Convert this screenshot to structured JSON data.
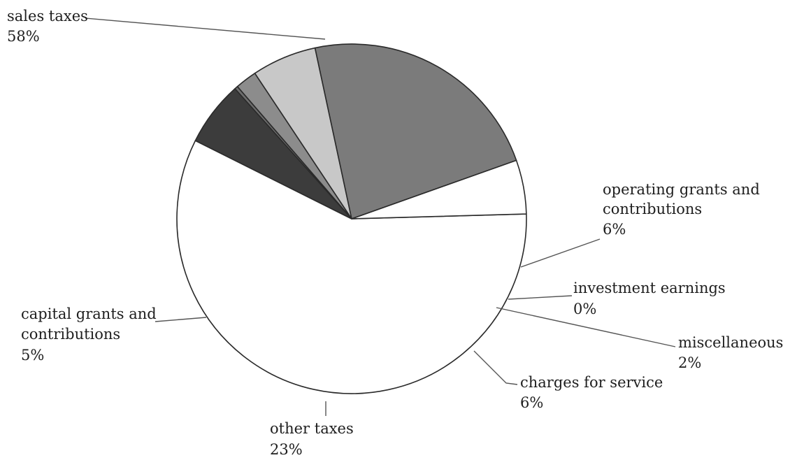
{
  "chart_data": {
    "type": "pie",
    "title": "",
    "slices": [
      {
        "label": "sales taxes",
        "pct_label": "58%",
        "value": 58,
        "color": "#ffffff"
      },
      {
        "label": "operating grants and contributions",
        "pct_label": "6%",
        "value": 6,
        "color": "#3c3c3c"
      },
      {
        "label": "investment earnings",
        "pct_label": "0%",
        "value": 0.3,
        "color": "#6d6d6d"
      },
      {
        "label": "miscellaneous",
        "pct_label": "2%",
        "value": 2,
        "color": "#8c8c8c"
      },
      {
        "label": "charges for service",
        "pct_label": "6%",
        "value": 6,
        "color": "#c8c8c8"
      },
      {
        "label": "other taxes",
        "pct_label": "23%",
        "value": 23,
        "color": "#7b7b7b"
      },
      {
        "label": "capital grants and contributions",
        "pct_label": "5%",
        "value": 5,
        "color": "#ffffff"
      }
    ],
    "legend": "none"
  }
}
